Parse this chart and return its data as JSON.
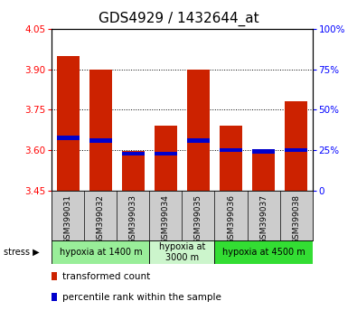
{
  "title": "GDS4929 / 1432644_at",
  "samples": [
    "GSM399031",
    "GSM399032",
    "GSM399033",
    "GSM399034",
    "GSM399035",
    "GSM399036",
    "GSM399037",
    "GSM399038"
  ],
  "red_tops": [
    3.95,
    3.9,
    3.595,
    3.69,
    3.9,
    3.69,
    3.595,
    3.78
  ],
  "blue_vals": [
    3.645,
    3.635,
    3.585,
    3.585,
    3.635,
    3.6,
    3.595,
    3.6
  ],
  "baseline": 3.45,
  "ylim": [
    3.45,
    4.05
  ],
  "yticks_left": [
    3.45,
    3.6,
    3.75,
    3.9,
    4.05
  ],
  "yticks_right_pct": [
    0,
    25,
    50,
    75,
    100
  ],
  "grid_lines": [
    3.6,
    3.75,
    3.9
  ],
  "bar_color": "#cc2200",
  "blue_color": "#0000cc",
  "bar_width": 0.7,
  "group_configs": [
    {
      "indices": [
        0,
        1,
        2
      ],
      "label": "hypoxia at 1400 m",
      "color": "#99ee99"
    },
    {
      "indices": [
        3,
        4
      ],
      "label": "hypoxia at\n3000 m",
      "color": "#ccf5cc"
    },
    {
      "indices": [
        5,
        6,
        7
      ],
      "label": "hypoxia at 4500 m",
      "color": "#33dd33"
    }
  ],
  "sample_bg": "#cccccc",
  "title_fontsize": 11,
  "tick_fontsize": 7.5,
  "sample_fontsize": 6.5,
  "group_fontsize": 7,
  "legend_fontsize": 7.5
}
